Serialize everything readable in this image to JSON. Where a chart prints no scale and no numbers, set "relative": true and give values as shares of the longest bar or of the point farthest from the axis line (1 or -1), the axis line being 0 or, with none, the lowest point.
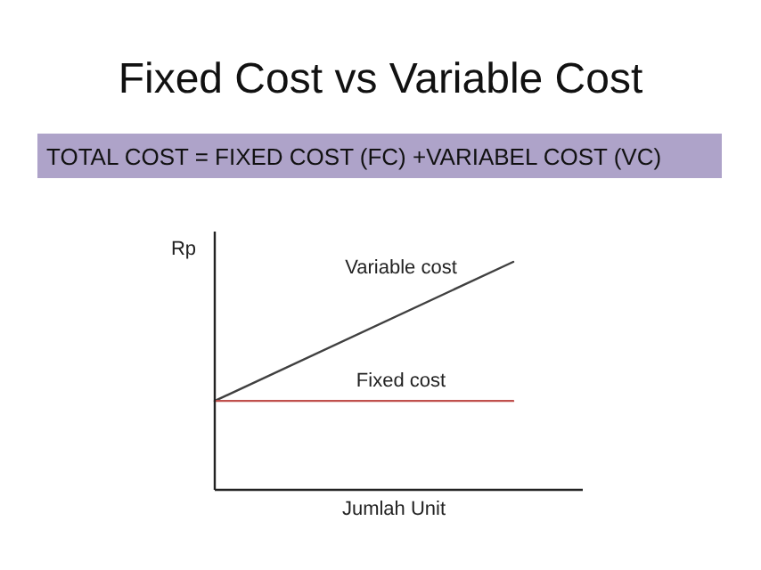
{
  "chart_data": {
    "type": "line",
    "title": "Fixed Cost vs Variable Cost",
    "subtitle": "TOTAL COST = FIXED COST (FC) +VARIABEL COST (VC)",
    "xlabel": "Jumlah Unit",
    "ylabel": "Rp",
    "relative": true,
    "categories": [
      null,
      null
    ],
    "series": [
      {
        "name": "Variable cost",
        "color": "#404040",
        "values": [
          0.39,
          1
        ]
      },
      {
        "name": "Fixed cost",
        "color": "#c0504d",
        "values": [
          0.39,
          0.39
        ]
      }
    ],
    "marker": "none",
    "line_style": "solid"
  }
}
